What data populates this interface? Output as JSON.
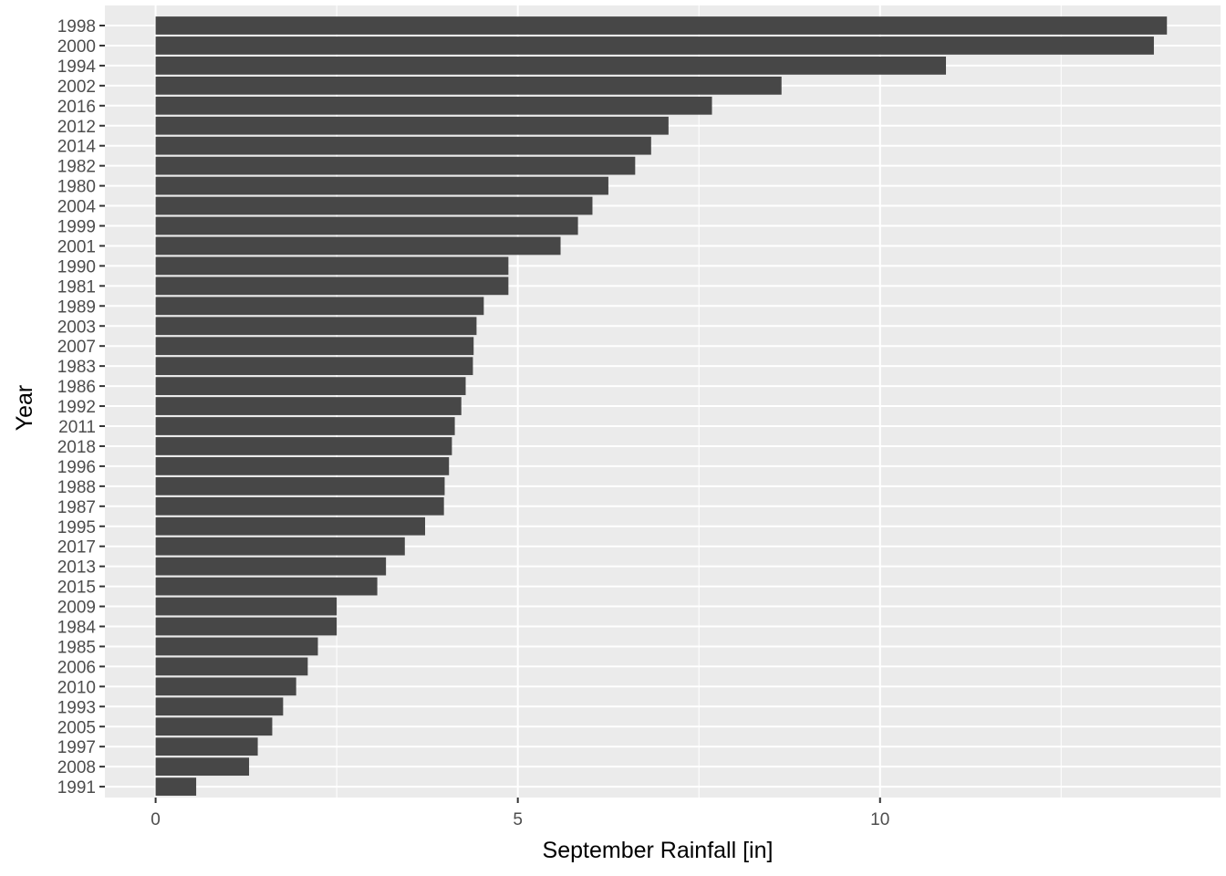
{
  "chart_data": {
    "type": "bar",
    "orientation": "horizontal",
    "title": "",
    "xlabel": "September Rainfall [in]",
    "ylabel": "Year",
    "xlim": [
      -0.7,
      14.7
    ],
    "xticks": [
      0,
      5,
      10
    ],
    "grid": true,
    "legend": "none",
    "colors": {
      "bar": "#474747",
      "panel": "#ebebeb",
      "grid": "#ffffff",
      "tick_text": "#4d4d4d",
      "title_text": "#000000"
    },
    "categories": [
      "1998",
      "2000",
      "1994",
      "2002",
      "2016",
      "2012",
      "2014",
      "1982",
      "1980",
      "2004",
      "1999",
      "2001",
      "1990",
      "1981",
      "1989",
      "2003",
      "2007",
      "1983",
      "1986",
      "1992",
      "2011",
      "2018",
      "1996",
      "1988",
      "1987",
      "1995",
      "2017",
      "2013",
      "2015",
      "2009",
      "1984",
      "1985",
      "2006",
      "2010",
      "1993",
      "2005",
      "1997",
      "2008",
      "1991"
    ],
    "values": [
      13.96,
      13.78,
      10.91,
      8.64,
      7.68,
      7.08,
      6.84,
      6.62,
      6.25,
      6.03,
      5.83,
      5.59,
      4.87,
      4.87,
      4.53,
      4.43,
      4.39,
      4.38,
      4.28,
      4.22,
      4.13,
      4.09,
      4.05,
      3.99,
      3.98,
      3.72,
      3.44,
      3.18,
      3.06,
      2.5,
      2.5,
      2.24,
      2.1,
      1.94,
      1.76,
      1.61,
      1.41,
      1.29,
      0.56
    ]
  }
}
